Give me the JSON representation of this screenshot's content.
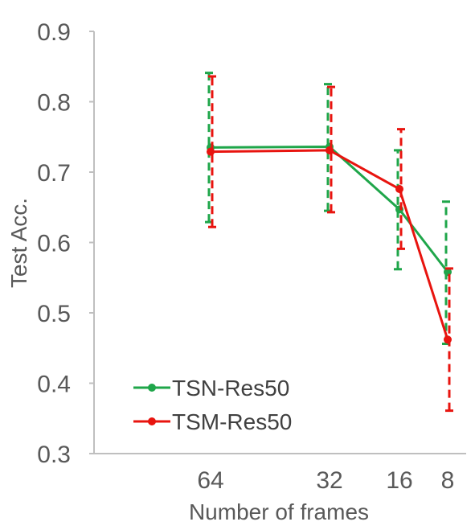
{
  "chart_data": {
    "type": "line",
    "title": "",
    "xlabel": "Number of frames",
    "ylabel": "Test Acc.",
    "categories": [
      "64",
      "32",
      "16",
      "8"
    ],
    "ylim": [
      0.3,
      0.9
    ],
    "yticks": [
      0.3,
      0.4,
      0.5,
      0.6,
      0.7,
      0.8,
      0.9
    ],
    "ytick_labels": [
      "0.3",
      "0.4",
      "0.5",
      "0.6",
      "0.7",
      "0.8",
      "0.9"
    ],
    "grid": false,
    "legend_position": "bottom-left",
    "series": [
      {
        "name": "TSN-Res50",
        "color": "#1fa64a",
        "values": [
          0.735,
          0.736,
          0.647,
          0.558
        ],
        "error_low": [
          0.629,
          0.645,
          0.562,
          0.456
        ],
        "error_high": [
          0.841,
          0.825,
          0.731,
          0.658
        ]
      },
      {
        "name": "TSM-Res50",
        "color": "#e8140f",
        "values": [
          0.729,
          0.731,
          0.676,
          0.462
        ],
        "error_low": [
          0.622,
          0.643,
          0.591,
          0.361
        ],
        "error_high": [
          0.836,
          0.821,
          0.761,
          0.563
        ]
      }
    ]
  }
}
